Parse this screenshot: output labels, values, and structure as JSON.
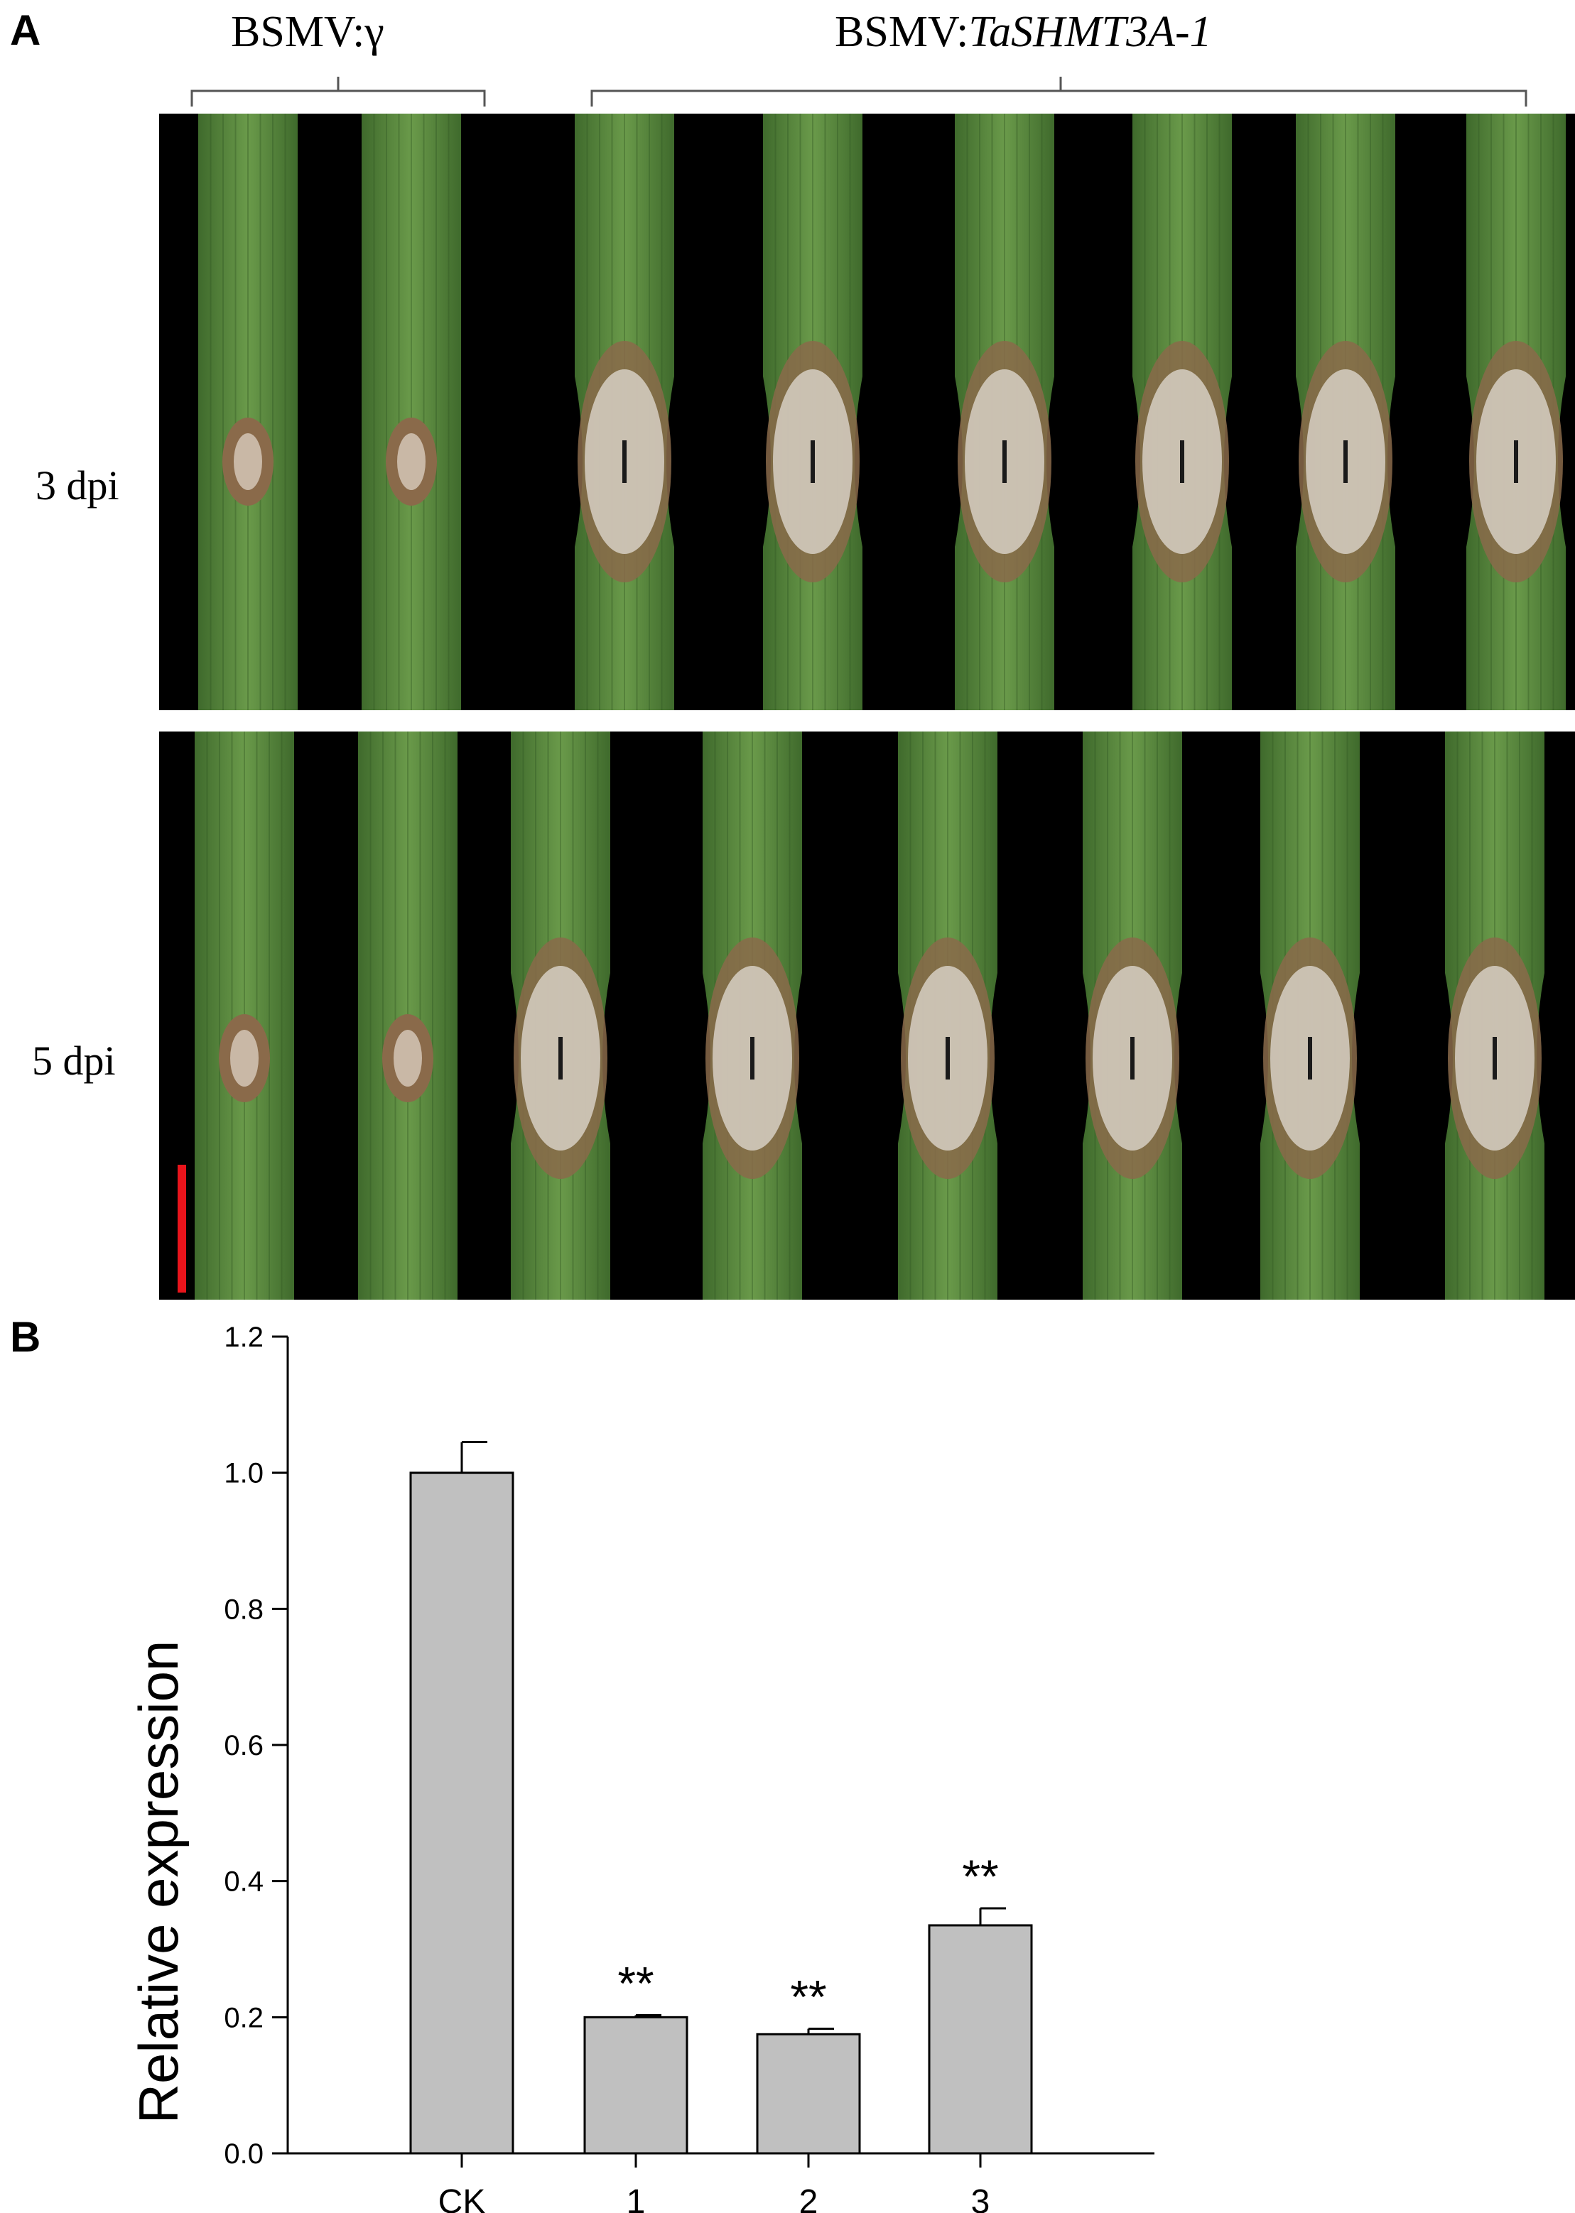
{
  "panel_a": {
    "label": "A",
    "group_control": "BSMV:γ",
    "group_silenced_prefix": "BSMV:",
    "group_silenced_gene": "TaSHMT3A-1",
    "row_top": "3 dpi",
    "row_bottom": "5 dpi",
    "leaf_count_per_row": 8,
    "colors": {
      "leaf_green": "#4f7d3a",
      "lesion_brown": "#8a6a4a",
      "fungal_white": "#dcd6cc",
      "scale_bar": "#e8141b"
    }
  },
  "panel_b": {
    "label": "B"
  },
  "chart_data": {
    "type": "bar",
    "categories": [
      "CK",
      "1",
      "2",
      "3"
    ],
    "values": [
      1.0,
      0.2,
      0.175,
      0.335
    ],
    "errors": [
      0.045,
      0.003,
      0.008,
      0.025
    ],
    "significance": [
      "",
      "**",
      "**",
      "**"
    ],
    "ylabel": "Relative expression",
    "xlabel": "",
    "ylim": [
      0,
      1.2
    ],
    "yticks": [
      "0.0",
      "0.2",
      "0.4",
      "0.6",
      "0.8",
      "1.0",
      "1.2"
    ],
    "grid": false,
    "bar_color": "#c0c0c0"
  }
}
